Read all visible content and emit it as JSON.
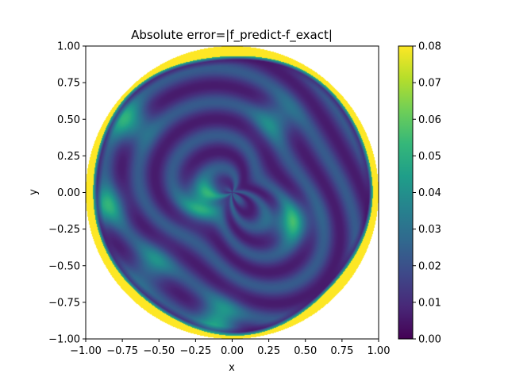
{
  "chart_data": {
    "type": "heatmap",
    "title": "Absolute error=|f_predict-f_exact|",
    "xlabel": "x",
    "ylabel": "y",
    "xlim": [
      -1.0,
      1.0
    ],
    "ylim": [
      -1.0,
      1.0
    ],
    "x_ticks": [
      -1.0,
      -0.75,
      -0.5,
      -0.25,
      0.0,
      0.25,
      0.5,
      0.75,
      1.0
    ],
    "y_ticks": [
      -1.0,
      -0.75,
      -0.5,
      -0.25,
      0.0,
      0.25,
      0.5,
      0.75,
      1.0
    ],
    "x_tick_labels": [
      "−1.00",
      "−0.75",
      "−0.50",
      "−0.25",
      "0.00",
      "0.25",
      "0.50",
      "0.75",
      "1.00"
    ],
    "y_tick_labels": [
      "−1.00",
      "−0.75",
      "−0.50",
      "−0.25",
      "0.00",
      "0.25",
      "0.50",
      "0.75",
      "1.00"
    ],
    "colorbar": {
      "range": [
        0.0,
        0.08
      ],
      "ticks": [
        0.0,
        0.01,
        0.02,
        0.03,
        0.04,
        0.05,
        0.06,
        0.07,
        0.08
      ],
      "tick_labels": [
        "0.00",
        "0.01",
        "0.02",
        "0.03",
        "0.04",
        "0.05",
        "0.06",
        "0.07",
        "0.08"
      ],
      "colormap": "viridis"
    },
    "domain_shape": "disk",
    "domain_radius": 1.0,
    "grid": false,
    "field_features": [
      {
        "kind": "peak",
        "x": -0.2,
        "y": -0.05,
        "value": 0.05
      },
      {
        "kind": "peak",
        "x": 0.4,
        "y": -0.2,
        "value": 0.045
      },
      {
        "kind": "peak",
        "x": -0.88,
        "y": -0.1,
        "value": 0.045
      },
      {
        "kind": "peak",
        "x": -0.1,
        "y": -0.88,
        "value": 0.05
      },
      {
        "kind": "peak",
        "x": -0.7,
        "y": 0.48,
        "value": 0.045
      },
      {
        "kind": "peak",
        "x": 0.3,
        "y": 0.5,
        "value": 0.03
      },
      {
        "kind": "peak",
        "x": -0.55,
        "y": -0.5,
        "value": 0.03
      },
      {
        "kind": "boundary_saturation",
        "value": 0.08
      }
    ]
  },
  "colors": {
    "viridis_stops": [
      "#440154",
      "#482878",
      "#3e4989",
      "#31688e",
      "#26828e",
      "#1f9e89",
      "#35b779",
      "#6ece58",
      "#b5de2b",
      "#fde725"
    ],
    "axes_frame": "#000000",
    "background": "#ffffff"
  }
}
